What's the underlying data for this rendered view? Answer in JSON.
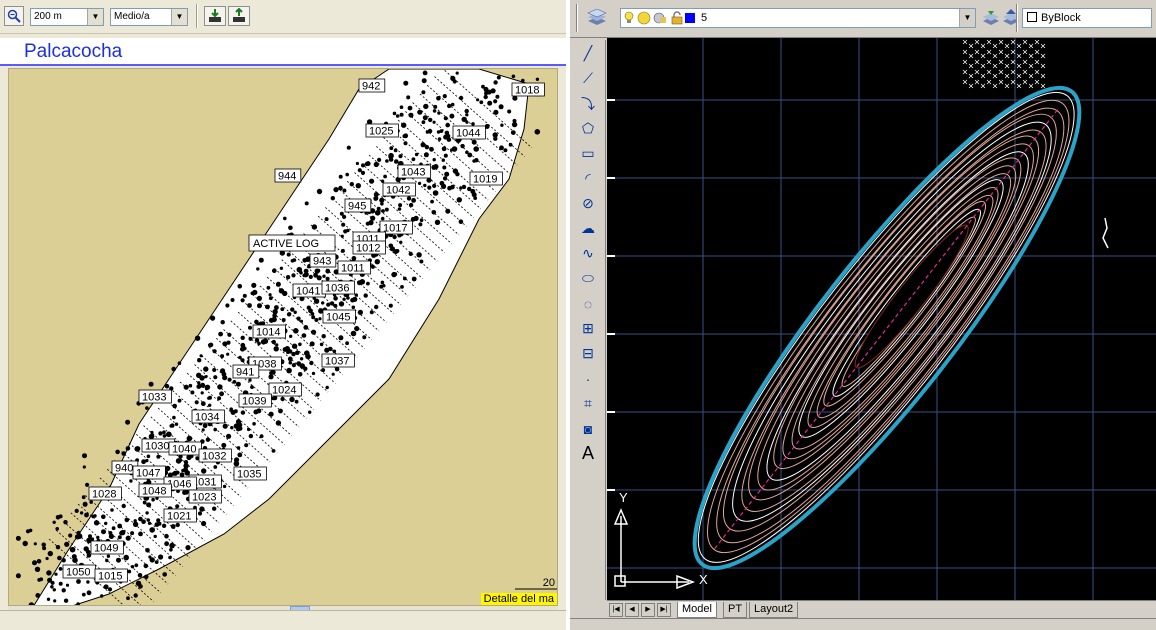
{
  "left_app": {
    "zoom_combo": {
      "value": "200 m"
    },
    "detail_combo": {
      "value": "Medio/a"
    },
    "title": "Palcacocha",
    "active_log_label": "ACTIVE LOG",
    "scale_value": "20",
    "detail_tag": "Detalle del ma",
    "waypoints": [
      "942",
      "1018",
      "1025",
      "1044",
      "944",
      "1043",
      "1042",
      "1019",
      "945",
      "1017",
      "1011",
      "1012",
      "943",
      "1011",
      "1041",
      "1036",
      "1045",
      "1014",
      "1038",
      "941",
      "1037",
      "1024",
      "1033",
      "1039",
      "1034",
      "1030",
      "1040",
      "1032",
      "940",
      "1047",
      "1035",
      "1031",
      "1046",
      "1048",
      "1023",
      "1028",
      "1021",
      "1049",
      "1050",
      "1015"
    ]
  },
  "right_app": {
    "layer_combo": {
      "value": "5"
    },
    "color_combo": {
      "value": "ByBlock"
    },
    "ucs": {
      "y_label": "Y",
      "x_label": "X"
    },
    "tabs": [
      "Model",
      "PT",
      "Layout2"
    ],
    "active_tab": "Model",
    "draw_tools": [
      "line-icon",
      "xline-icon",
      "polyline-icon",
      "polygon-icon",
      "rectangle-icon",
      "arc-icon",
      "circle-icon",
      "revision-cloud-icon",
      "spline-icon",
      "ellipse-icon",
      "ellipse-arc-icon",
      "insert-block-icon",
      "make-block-icon",
      "point-icon",
      "hatch-icon",
      "region-icon",
      "text-icon"
    ],
    "text_tool_glyph": "A"
  },
  "colors": {
    "title_blue": "#1a2fe0",
    "map_background": "#dccf96",
    "lake_fill": "#ffffff",
    "cad_background": "#000000",
    "grid_blue": "#3a4f86",
    "contour_salmon": "#e0a896",
    "lake_outline_cyan": "#2aa3c9",
    "thalweg_magenta": "#e02c8c",
    "detail_yellow": "#fff600"
  }
}
